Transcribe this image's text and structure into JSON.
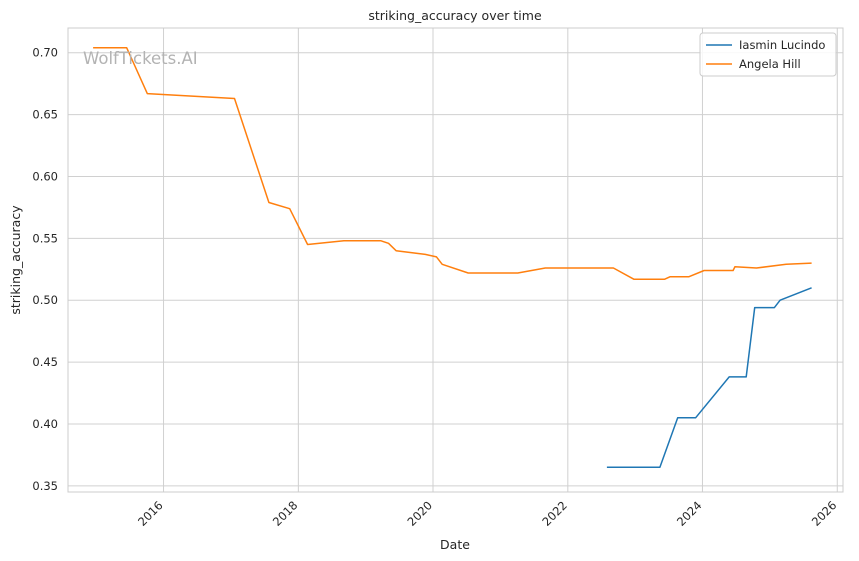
{
  "watermark": "WolfTickets.AI",
  "chart_data": {
    "type": "line",
    "title": "striking_accuracy over time",
    "xlabel": "Date",
    "ylabel": "striking_accuracy",
    "xlim": [
      "2014-08-01",
      "2026-02-01"
    ],
    "ylim": [
      0.345,
      0.72
    ],
    "x_ticks": [
      "2016-01-01",
      "2018-01-01",
      "2020-01-01",
      "2022-01-01",
      "2024-01-01",
      "2026-01-01"
    ],
    "x_tick_labels": [
      "2016",
      "2018",
      "2020",
      "2022",
      "2024",
      "2026"
    ],
    "y_ticks": [
      0.35,
      0.4,
      0.45,
      0.5,
      0.55,
      0.6,
      0.65,
      0.7
    ],
    "y_tick_labels": [
      "0.35",
      "0.40",
      "0.45",
      "0.50",
      "0.55",
      "0.60",
      "0.65",
      "0.70"
    ],
    "grid": true,
    "legend_position": "top-right",
    "series": [
      {
        "name": "Iasmin Lucindo",
        "color": "#1f77b4",
        "points": [
          [
            "2022-08-01",
            0.365
          ],
          [
            "2023-05-15",
            0.365
          ],
          [
            "2023-08-20",
            0.405
          ],
          [
            "2023-11-25",
            0.405
          ],
          [
            "2024-05-25",
            0.438
          ],
          [
            "2024-08-25",
            0.438
          ],
          [
            "2024-10-10",
            0.494
          ],
          [
            "2025-01-25",
            0.494
          ],
          [
            "2025-02-25",
            0.5
          ],
          [
            "2025-08-15",
            0.51
          ]
        ]
      },
      {
        "name": "Angela Hill",
        "color": "#ff7f0e",
        "points": [
          [
            "2014-12-15",
            0.704
          ],
          [
            "2015-06-15",
            0.704
          ],
          [
            "2015-10-05",
            0.667
          ],
          [
            "2017-01-20",
            0.663
          ],
          [
            "2017-07-25",
            0.579
          ],
          [
            "2017-11-15",
            0.574
          ],
          [
            "2018-02-20",
            0.545
          ],
          [
            "2018-09-05",
            0.548
          ],
          [
            "2019-03-25",
            0.548
          ],
          [
            "2019-05-05",
            0.546
          ],
          [
            "2019-06-15",
            0.54
          ],
          [
            "2019-11-20",
            0.537
          ],
          [
            "2020-01-20",
            0.535
          ],
          [
            "2020-02-20",
            0.529
          ],
          [
            "2020-07-10",
            0.522
          ],
          [
            "2021-04-05",
            0.522
          ],
          [
            "2021-09-01",
            0.526
          ],
          [
            "2022-01-10",
            0.526
          ],
          [
            "2022-07-30",
            0.526
          ],
          [
            "2022-09-05",
            0.526
          ],
          [
            "2022-12-25",
            0.517
          ],
          [
            "2023-06-10",
            0.517
          ],
          [
            "2023-07-10",
            0.519
          ],
          [
            "2023-10-20",
            0.519
          ],
          [
            "2024-01-10",
            0.524
          ],
          [
            "2024-06-15",
            0.524
          ],
          [
            "2024-06-25",
            0.527
          ],
          [
            "2024-10-20",
            0.526
          ],
          [
            "2025-03-30",
            0.529
          ],
          [
            "2025-08-15",
            0.53
          ]
        ]
      }
    ]
  }
}
